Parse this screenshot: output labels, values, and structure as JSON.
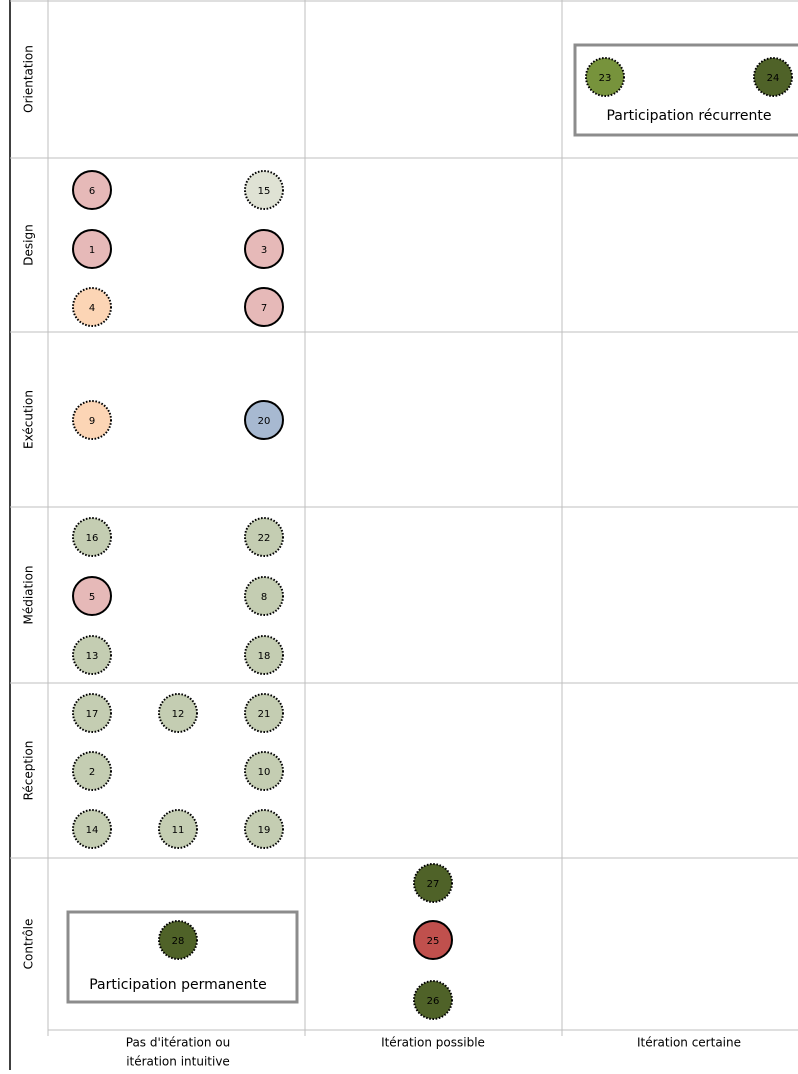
{
  "rows": [
    "Orientation",
    "Design",
    "Exécution",
    "Médiation",
    "Réception",
    "Contrôle"
  ],
  "columns": [
    [
      "Pas d'itération ou",
      "itération intuitive"
    ],
    [
      "Itération possible"
    ],
    [
      "Itération certaine"
    ]
  ],
  "boxes": [
    {
      "label": "Participation récurrente"
    },
    {
      "label": "Participation permanente"
    }
  ],
  "nodes": [
    {
      "label": "23",
      "fill": "#77933c",
      "border": "dotted"
    },
    {
      "label": "24",
      "fill": "#4f6228",
      "border": "dotted"
    },
    {
      "label": "6",
      "fill": "#e6b9b8",
      "border": "solid"
    },
    {
      "label": "15",
      "fill": "#dfe2d4",
      "border": "dotted"
    },
    {
      "label": "1",
      "fill": "#e6b9b8",
      "border": "solid"
    },
    {
      "label": "3",
      "fill": "#e6b9b8",
      "border": "solid"
    },
    {
      "label": "4",
      "fill": "#fcd5b5",
      "border": "dotted"
    },
    {
      "label": "7",
      "fill": "#e6b9b8",
      "border": "solid"
    },
    {
      "label": "9",
      "fill": "#fcd5b5",
      "border": "dotted"
    },
    {
      "label": "20",
      "fill": "#a7b9d1",
      "border": "solid"
    },
    {
      "label": "16",
      "fill": "#c4cdb2",
      "border": "dotted"
    },
    {
      "label": "22",
      "fill": "#c4cdb2",
      "border": "dotted"
    },
    {
      "label": "5",
      "fill": "#e6b9b8",
      "border": "solid"
    },
    {
      "label": "8",
      "fill": "#c4cdb2",
      "border": "dotted"
    },
    {
      "label": "13",
      "fill": "#c4cdb2",
      "border": "dotted"
    },
    {
      "label": "18",
      "fill": "#c4cdb2",
      "border": "dotted"
    },
    {
      "label": "17",
      "fill": "#c4cdb2",
      "border": "dotted"
    },
    {
      "label": "12",
      "fill": "#c4cdb2",
      "border": "dotted"
    },
    {
      "label": "21",
      "fill": "#c4cdb2",
      "border": "dotted"
    },
    {
      "label": "2",
      "fill": "#c4cdb2",
      "border": "dotted"
    },
    {
      "label": "10",
      "fill": "#c4cdb2",
      "border": "dotted"
    },
    {
      "label": "14",
      "fill": "#c4cdb2",
      "border": "dotted"
    },
    {
      "label": "11",
      "fill": "#c4cdb2",
      "border": "dotted"
    },
    {
      "label": "19",
      "fill": "#c4cdb2",
      "border": "dotted"
    },
    {
      "label": "28",
      "fill": "#4f6228",
      "border": "dotted"
    },
    {
      "label": "27",
      "fill": "#4f6228",
      "border": "dotted"
    },
    {
      "label": "25",
      "fill": "#c0504d",
      "border": "solid"
    },
    {
      "label": "26",
      "fill": "#4f6228",
      "border": "dotted"
    }
  ]
}
